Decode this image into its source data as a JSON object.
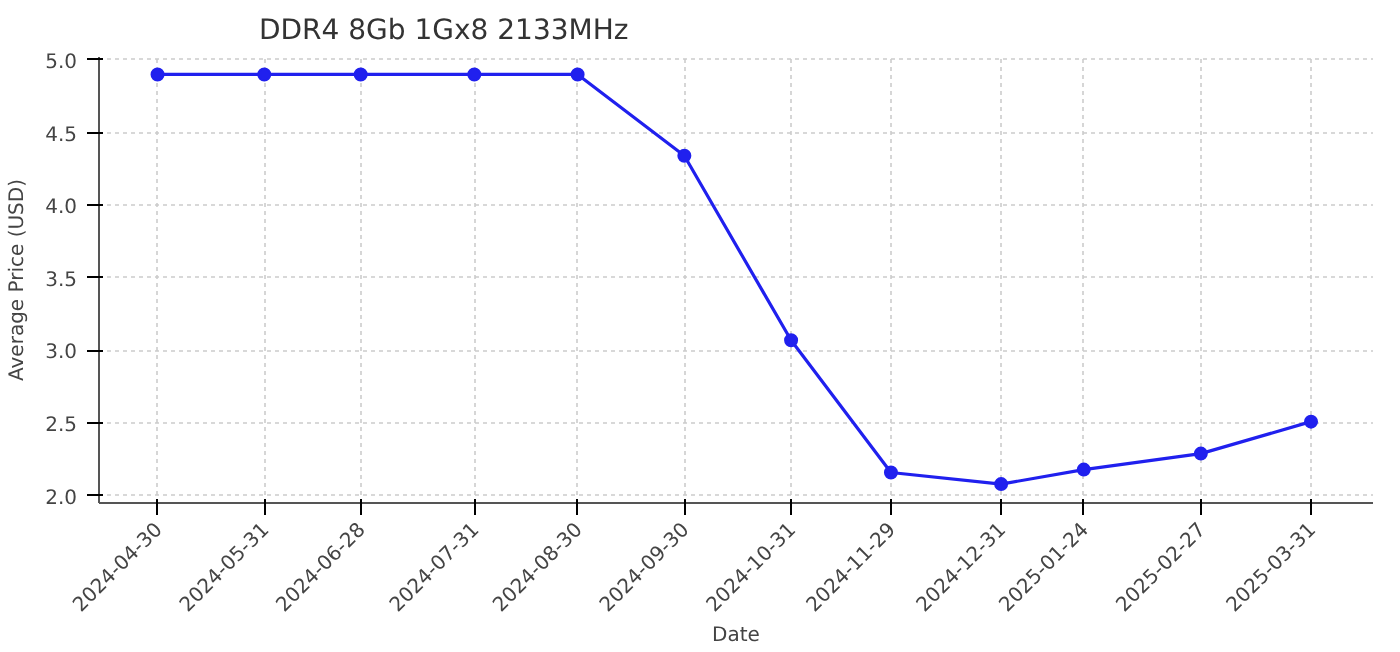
{
  "chart_data": {
    "type": "line",
    "title": "DDR4 8Gb 1Gx8 2133MHz",
    "xlabel": "Date",
    "ylabel": "Average Price (USD)",
    "x": [
      "2024-04-30",
      "2024-05-31",
      "2024-06-28",
      "2024-07-31",
      "2024-08-30",
      "2024-09-30",
      "2024-10-31",
      "2024-11-29",
      "2024-12-31",
      "2025-01-24",
      "2025-02-27",
      "2025-03-31"
    ],
    "series": [
      {
        "color": "#2020ee",
        "values": [
          4.9,
          4.9,
          4.9,
          4.9,
          4.9,
          4.34,
          3.07,
          2.16,
          2.08,
          2.18,
          2.29,
          2.51
        ]
      }
    ],
    "xlim": [
      "2024-04-13",
      "2025-04-18"
    ],
    "xticks": [
      "2024-04-30",
      "2024-05-31",
      "2024-06-28",
      "2024-07-31",
      "2024-08-30",
      "2024-09-30",
      "2024-10-31",
      "2024-11-29",
      "2024-12-31",
      "2025-01-24",
      "2025-02-27",
      "2025-03-31"
    ],
    "ylim": [
      1.95,
      5.02
    ],
    "yticks": [
      {
        "value": 2,
        "label": "2.0"
      },
      {
        "value": 2.5,
        "label": "2.5"
      },
      {
        "value": 3,
        "label": "3.0"
      },
      {
        "value": 3.5,
        "label": "3.5"
      },
      {
        "value": 4,
        "label": "4.0"
      },
      {
        "value": 4.5,
        "label": "4.5"
      },
      {
        "value": 5,
        "label": "5.0"
      }
    ],
    "grid": true,
    "marker": "circle",
    "line_style": "solid"
  }
}
